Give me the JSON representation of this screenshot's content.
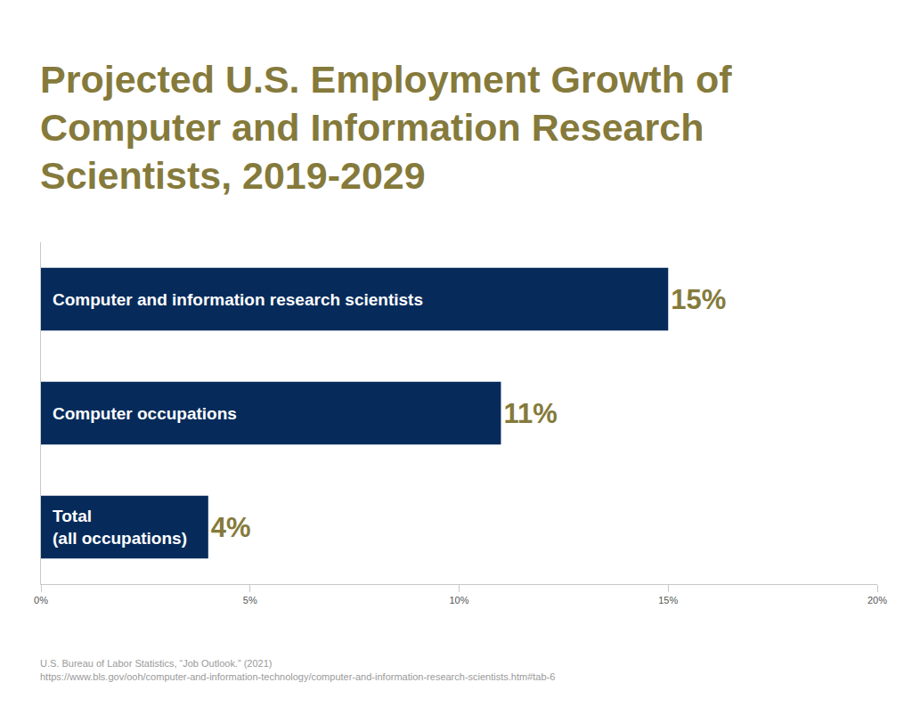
{
  "chart_data": {
    "type": "bar",
    "orientation": "horizontal",
    "title": "Projected U.S. Employment Growth of Computer and Information Research Scientists, 2019-2029",
    "categories": [
      "Computer and information research scientists",
      "Computer occupations",
      "Total\n(all occupations)"
    ],
    "values": [
      15,
      11,
      4
    ],
    "value_labels": [
      "15%",
      "11%",
      "4%"
    ],
    "data_labels": true,
    "color": "#062b5b",
    "xlim": [
      0,
      20
    ],
    "xticks": [
      {
        "value": 0,
        "label": "0%"
      },
      {
        "value": 5,
        "label": "5%"
      },
      {
        "value": 10,
        "label": "10%"
      },
      {
        "value": 15,
        "label": "15%"
      },
      {
        "value": 20,
        "label": "20%"
      }
    ],
    "grid": false,
    "tick_labels": "x",
    "source": "U.S. Bureau of Labor Statistics, “Job Outlook.” (2021)",
    "source_url": "https://www.bls.gov/ooh/computer-and-information-technology/computer-and-information-research-scientists.htm#tab-6"
  }
}
